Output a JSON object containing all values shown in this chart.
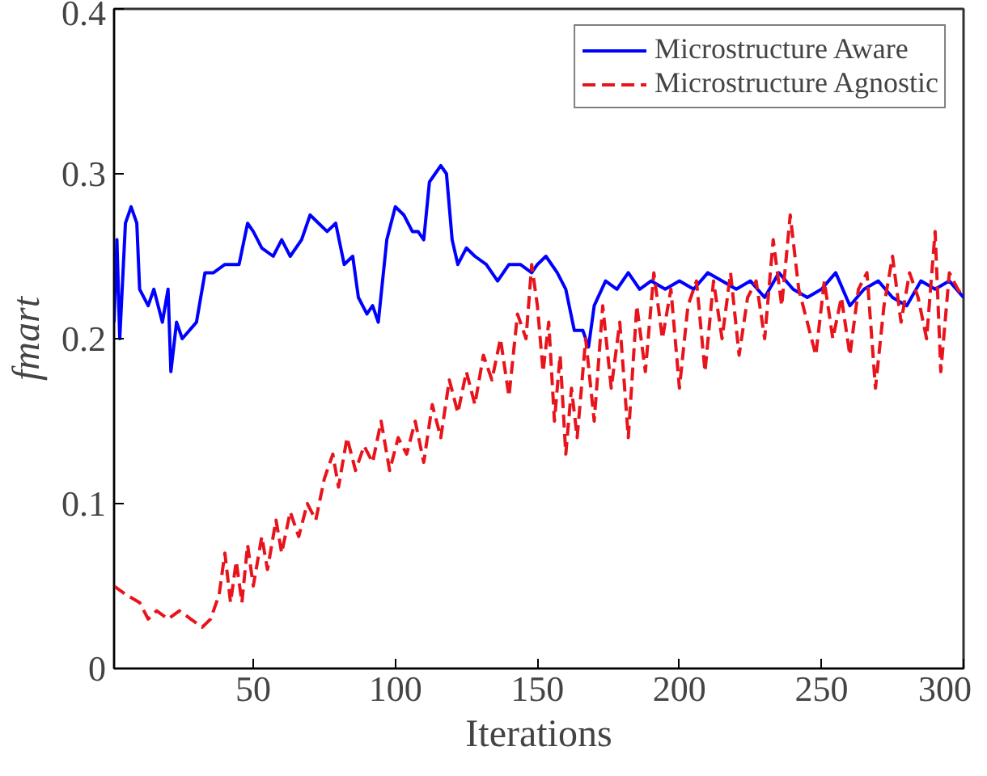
{
  "chart_data": {
    "type": "line",
    "xlabel": "Iterations",
    "ylabel": "fmart",
    "xlim": [
      1,
      300
    ],
    "ylim": [
      0,
      0.4
    ],
    "xticks": [
      50,
      100,
      150,
      200,
      250,
      300
    ],
    "yticks": [
      0,
      0.1,
      0.2,
      0.3,
      0.4
    ],
    "grid": false,
    "legend": "top right",
    "series": [
      {
        "name": "Microstructure Aware",
        "color": "#0000ff",
        "line_style": "solid",
        "x": [
          1,
          2,
          3,
          5,
          7,
          9,
          10,
          13,
          15,
          18,
          20,
          21,
          23,
          25,
          30,
          33,
          36,
          40,
          45,
          48,
          50,
          53,
          57,
          60,
          63,
          67,
          70,
          73,
          76,
          79,
          82,
          85,
          87,
          90,
          92,
          94,
          97,
          100,
          103,
          106,
          108,
          110,
          112,
          114,
          116,
          118,
          120,
          122,
          125,
          128,
          132,
          136,
          140,
          144,
          148,
          150,
          153,
          157,
          160,
          163,
          166,
          168,
          170,
          174,
          178,
          182,
          186,
          190,
          195,
          200,
          205,
          210,
          215,
          220,
          225,
          230,
          235,
          240,
          245,
          250,
          255,
          260,
          265,
          270,
          275,
          280,
          285,
          290,
          295,
          300
        ],
        "values": [
          0.21,
          0.26,
          0.2,
          0.27,
          0.28,
          0.27,
          0.23,
          0.22,
          0.23,
          0.21,
          0.23,
          0.18,
          0.21,
          0.2,
          0.21,
          0.24,
          0.24,
          0.245,
          0.245,
          0.27,
          0.265,
          0.255,
          0.25,
          0.26,
          0.25,
          0.26,
          0.275,
          0.27,
          0.265,
          0.27,
          0.245,
          0.25,
          0.225,
          0.215,
          0.22,
          0.21,
          0.26,
          0.28,
          0.275,
          0.265,
          0.265,
          0.26,
          0.295,
          0.3,
          0.305,
          0.3,
          0.26,
          0.245,
          0.255,
          0.25,
          0.245,
          0.235,
          0.245,
          0.245,
          0.24,
          0.245,
          0.25,
          0.24,
          0.23,
          0.205,
          0.205,
          0.195,
          0.22,
          0.235,
          0.23,
          0.24,
          0.23,
          0.235,
          0.23,
          0.235,
          0.23,
          0.24,
          0.235,
          0.23,
          0.235,
          0.225,
          0.24,
          0.23,
          0.225,
          0.23,
          0.24,
          0.22,
          0.23,
          0.235,
          0.225,
          0.22,
          0.235,
          0.23,
          0.235,
          0.225
        ]
      },
      {
        "name": "Microstructure Agnostic",
        "color": "#e8141c",
        "line_style": "dashed",
        "x": [
          1,
          5,
          10,
          13,
          16,
          20,
          24,
          28,
          32,
          35,
          38,
          40,
          42,
          44,
          46,
          48,
          50,
          53,
          55,
          58,
          60,
          63,
          66,
          69,
          72,
          75,
          78,
          80,
          83,
          86,
          89,
          92,
          95,
          98,
          101,
          104,
          107,
          110,
          113,
          116,
          119,
          122,
          125,
          128,
          131,
          134,
          137,
          140,
          143,
          146,
          148,
          150,
          152,
          154,
          156,
          158,
          160,
          162,
          164,
          167,
          170,
          173,
          176,
          179,
          182,
          185,
          188,
          191,
          194,
          197,
          200,
          203,
          206,
          209,
          212,
          215,
          218,
          221,
          224,
          227,
          230,
          233,
          236,
          239,
          242,
          245,
          248,
          251,
          254,
          257,
          260,
          263,
          266,
          269,
          272,
          275,
          278,
          281,
          284,
          287,
          290,
          292,
          295,
          298,
          300
        ],
        "values": [
          0.05,
          0.045,
          0.04,
          0.03,
          0.035,
          0.03,
          0.035,
          0.03,
          0.025,
          0.03,
          0.045,
          0.07,
          0.04,
          0.065,
          0.04,
          0.075,
          0.05,
          0.08,
          0.06,
          0.09,
          0.07,
          0.095,
          0.08,
          0.1,
          0.09,
          0.115,
          0.13,
          0.11,
          0.14,
          0.12,
          0.135,
          0.125,
          0.15,
          0.12,
          0.14,
          0.13,
          0.15,
          0.125,
          0.16,
          0.14,
          0.175,
          0.155,
          0.18,
          0.16,
          0.19,
          0.175,
          0.2,
          0.165,
          0.215,
          0.2,
          0.245,
          0.22,
          0.18,
          0.21,
          0.15,
          0.19,
          0.13,
          0.17,
          0.14,
          0.2,
          0.15,
          0.22,
          0.17,
          0.21,
          0.14,
          0.22,
          0.18,
          0.24,
          0.2,
          0.23,
          0.17,
          0.22,
          0.235,
          0.18,
          0.235,
          0.2,
          0.24,
          0.19,
          0.225,
          0.235,
          0.2,
          0.26,
          0.22,
          0.275,
          0.23,
          0.21,
          0.19,
          0.235,
          0.2,
          0.225,
          0.19,
          0.23,
          0.24,
          0.17,
          0.22,
          0.25,
          0.21,
          0.24,
          0.225,
          0.2,
          0.265,
          0.18,
          0.24,
          0.23,
          0.225
        ]
      }
    ]
  }
}
